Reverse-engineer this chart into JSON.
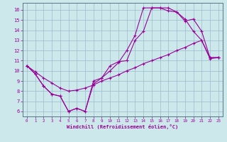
{
  "xlabel": "Windchill (Refroidissement éolien,°C)",
  "background_color": "#cce8ea",
  "line_color": "#990099",
  "grid_color": "#99bbcc",
  "xlim": [
    -0.5,
    23.5
  ],
  "ylim": [
    5.5,
    16.7
  ],
  "xticks": [
    0,
    1,
    2,
    3,
    4,
    5,
    6,
    7,
    8,
    9,
    10,
    11,
    12,
    13,
    14,
    15,
    16,
    17,
    18,
    19,
    20,
    21,
    22,
    23
  ],
  "yticks": [
    6,
    7,
    8,
    9,
    10,
    11,
    12,
    13,
    14,
    15,
    16
  ],
  "curve_a_x": [
    0,
    1,
    2,
    3,
    4,
    5,
    6,
    7,
    8,
    9,
    10,
    11,
    12,
    13,
    14,
    15,
    16,
    17,
    18,
    19,
    20,
    21,
    22,
    23
  ],
  "curve_a_y": [
    10.5,
    9.7,
    8.5,
    7.7,
    7.5,
    6.0,
    6.3,
    6.0,
    9.0,
    9.3,
    10.5,
    10.9,
    11.0,
    13.0,
    13.9,
    16.2,
    16.2,
    16.2,
    15.8,
    15.1,
    13.9,
    13.0,
    11.3,
    11.3
  ],
  "curve_b_x": [
    0,
    1,
    2,
    3,
    4,
    5,
    6,
    7,
    8,
    9,
    10,
    11,
    12,
    13,
    14,
    15,
    16,
    17,
    18,
    19,
    20,
    21,
    22,
    23
  ],
  "curve_b_y": [
    10.5,
    9.7,
    8.5,
    7.7,
    7.5,
    6.0,
    6.3,
    6.0,
    8.7,
    9.3,
    10.0,
    10.8,
    12.0,
    13.5,
    16.2,
    16.2,
    16.2,
    15.9,
    15.8,
    14.9,
    15.1,
    13.9,
    11.3,
    11.3
  ],
  "curve_c_x": [
    0,
    1,
    2,
    3,
    4,
    5,
    6,
    7,
    8,
    9,
    10,
    11,
    12,
    13,
    14,
    15,
    16,
    17,
    18,
    19,
    20,
    21,
    22,
    23
  ],
  "curve_c_y": [
    10.5,
    9.9,
    9.3,
    8.8,
    8.3,
    8.0,
    8.1,
    8.3,
    8.6,
    9.0,
    9.3,
    9.6,
    10.0,
    10.3,
    10.7,
    11.0,
    11.3,
    11.6,
    12.0,
    12.3,
    12.7,
    13.0,
    11.2,
    11.3
  ]
}
